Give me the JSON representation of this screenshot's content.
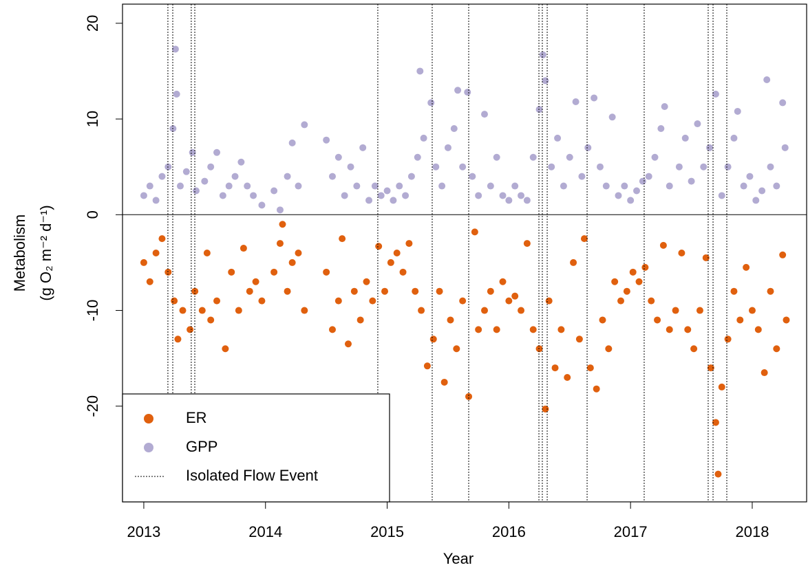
{
  "chart_data": {
    "type": "scatter",
    "x_label": "Year",
    "y_label": [
      "Metabolism",
      "(g O₂ m⁻² d⁻¹)"
    ],
    "xlim": [
      2012.825,
      2018.447
    ],
    "ylim": [
      -30,
      22
    ],
    "xticks": [
      2013,
      2014,
      2015,
      2016,
      2017,
      2018
    ],
    "yticks": [
      -20,
      -10,
      0,
      10,
      20
    ],
    "hline": 0,
    "legend": "lower left",
    "flow_event_label": "Isolated Flow Event",
    "flow_events": [
      2013.198,
      2013.238,
      2013.39,
      2013.419,
      2014.923,
      2015.37,
      2015.67,
      2016.247,
      2016.275,
      2016.315,
      2016.643,
      2017.112,
      2017.638,
      2017.678,
      2017.791
    ],
    "series": [
      {
        "name": "ER",
        "color": "#e0600e",
        "x": [
          2013.0,
          2013.05,
          2013.1,
          2013.15,
          2013.2,
          2013.25,
          2013.28,
          2013.32,
          2013.38,
          2013.42,
          2013.48,
          2013.52,
          2013.55,
          2013.6,
          2013.67,
          2013.72,
          2013.78,
          2013.82,
          2013.87,
          2013.92,
          2013.97,
          2014.07,
          2014.12,
          2014.14,
          2014.18,
          2014.22,
          2014.27,
          2014.32,
          2014.5,
          2014.55,
          2014.6,
          2014.63,
          2014.68,
          2014.73,
          2014.78,
          2014.83,
          2014.88,
          2014.93,
          2014.98,
          2015.03,
          2015.08,
          2015.13,
          2015.18,
          2015.23,
          2015.28,
          2015.33,
          2015.38,
          2015.43,
          2015.47,
          2015.52,
          2015.57,
          2015.62,
          2015.67,
          2015.72,
          2015.75,
          2015.8,
          2015.85,
          2015.9,
          2015.95,
          2016.0,
          2016.05,
          2016.1,
          2016.15,
          2016.2,
          2016.25,
          2016.3,
          2016.33,
          2016.38,
          2016.43,
          2016.48,
          2016.53,
          2016.58,
          2016.62,
          2016.67,
          2016.72,
          2016.77,
          2016.82,
          2016.87,
          2016.92,
          2016.97,
          2017.02,
          2017.07,
          2017.12,
          2017.17,
          2017.22,
          2017.27,
          2017.32,
          2017.37,
          2017.42,
          2017.47,
          2017.52,
          2017.57,
          2017.62,
          2017.66,
          2017.7,
          2017.72,
          2017.75,
          2017.8,
          2017.85,
          2017.9,
          2017.95,
          2018.0,
          2018.05,
          2018.1,
          2018.15,
          2018.2,
          2018.25,
          2018.28
        ],
        "values": [
          -5,
          -7,
          -4,
          -2.5,
          -6,
          -9,
          -13,
          -10,
          -12,
          -8,
          -10,
          -4,
          -11,
          -9,
          -14,
          -6,
          -10,
          -3.5,
          -8,
          -7,
          -9,
          -6,
          -3,
          -1,
          -8,
          -5,
          -4,
          -10,
          -6,
          -12,
          -9,
          -2.5,
          -13.5,
          -8,
          -11,
          -7,
          -9,
          -3.3,
          -8,
          -5,
          -4,
          -6,
          -3,
          -8,
          -10,
          -15.8,
          -13,
          -8,
          -17.5,
          -11,
          -14,
          -9,
          -19,
          -1.8,
          -12,
          -10,
          -8,
          -12,
          -7,
          -9,
          -8.5,
          -10,
          -3,
          -12,
          -14,
          -20.3,
          -9,
          -16,
          -12,
          -17,
          -5,
          -13,
          -2.5,
          -16,
          -18.2,
          -11,
          -14,
          -7,
          -9,
          -8,
          -6,
          -7,
          -5.5,
          -9,
          -11,
          -3.2,
          -12,
          -10,
          -4,
          -12,
          -14,
          -10,
          -4.5,
          -16,
          -21.7,
          -27.1,
          -18,
          -13,
          -8,
          -11,
          -5.5,
          -10,
          -12,
          -16.5,
          -8,
          -14,
          -4.2,
          -11
        ]
      },
      {
        "name": "GPP",
        "color": "#b2abd2",
        "x": [
          2013.0,
          2013.05,
          2013.1,
          2013.15,
          2013.2,
          2013.24,
          2013.26,
          2013.27,
          2013.3,
          2013.35,
          2013.4,
          2013.43,
          2013.5,
          2013.55,
          2013.6,
          2013.65,
          2013.7,
          2013.75,
          2013.8,
          2013.85,
          2013.9,
          2013.97,
          2014.07,
          2014.12,
          2014.18,
          2014.22,
          2014.27,
          2014.32,
          2014.5,
          2014.55,
          2014.6,
          2014.65,
          2014.7,
          2014.75,
          2014.8,
          2014.85,
          2014.9,
          2014.95,
          2015.0,
          2015.05,
          2015.1,
          2015.15,
          2015.2,
          2015.25,
          2015.27,
          2015.3,
          2015.36,
          2015.4,
          2015.45,
          2015.5,
          2015.55,
          2015.58,
          2015.62,
          2015.66,
          2015.7,
          2015.75,
          2015.8,
          2015.85,
          2015.9,
          2015.95,
          2016.0,
          2016.05,
          2016.1,
          2016.15,
          2016.2,
          2016.25,
          2016.28,
          2016.3,
          2016.35,
          2016.4,
          2016.45,
          2016.5,
          2016.55,
          2016.6,
          2016.65,
          2016.7,
          2016.75,
          2016.8,
          2016.85,
          2016.9,
          2016.95,
          2017.0,
          2017.05,
          2017.1,
          2017.15,
          2017.2,
          2017.25,
          2017.28,
          2017.32,
          2017.4,
          2017.45,
          2017.5,
          2017.55,
          2017.6,
          2017.65,
          2017.7,
          2017.75,
          2017.8,
          2017.85,
          2017.88,
          2017.93,
          2017.98,
          2018.03,
          2018.08,
          2018.12,
          2018.15,
          2018.2,
          2018.25,
          2018.27
        ],
        "values": [
          2,
          3,
          1.5,
          4,
          5,
          9,
          17.3,
          12.6,
          3,
          4.5,
          6.5,
          2.5,
          3.5,
          5,
          6.5,
          2,
          3,
          4,
          5.5,
          3,
          2,
          1,
          2.5,
          0.5,
          4,
          7.5,
          3,
          9.4,
          7.8,
          4,
          6,
          2,
          5,
          3,
          7,
          1.5,
          3,
          2,
          2.5,
          1.5,
          3,
          2,
          4,
          6,
          15,
          8,
          11.7,
          5,
          3,
          7,
          9,
          13,
          5,
          12.8,
          4,
          2,
          10.5,
          3,
          6,
          2,
          1.5,
          3,
          2,
          1.5,
          6,
          11,
          16.7,
          14,
          5,
          8,
          3,
          6,
          11.8,
          4,
          7,
          12.2,
          5,
          3,
          10.2,
          2,
          3,
          1.5,
          2.5,
          3.5,
          4,
          6,
          9,
          11.3,
          3,
          5,
          8,
          3.5,
          9.5,
          5,
          7,
          12.6,
          2,
          5,
          8,
          10.8,
          3,
          4,
          1.5,
          2.5,
          14.1,
          5,
          3,
          11.7,
          7
        ]
      }
    ]
  }
}
